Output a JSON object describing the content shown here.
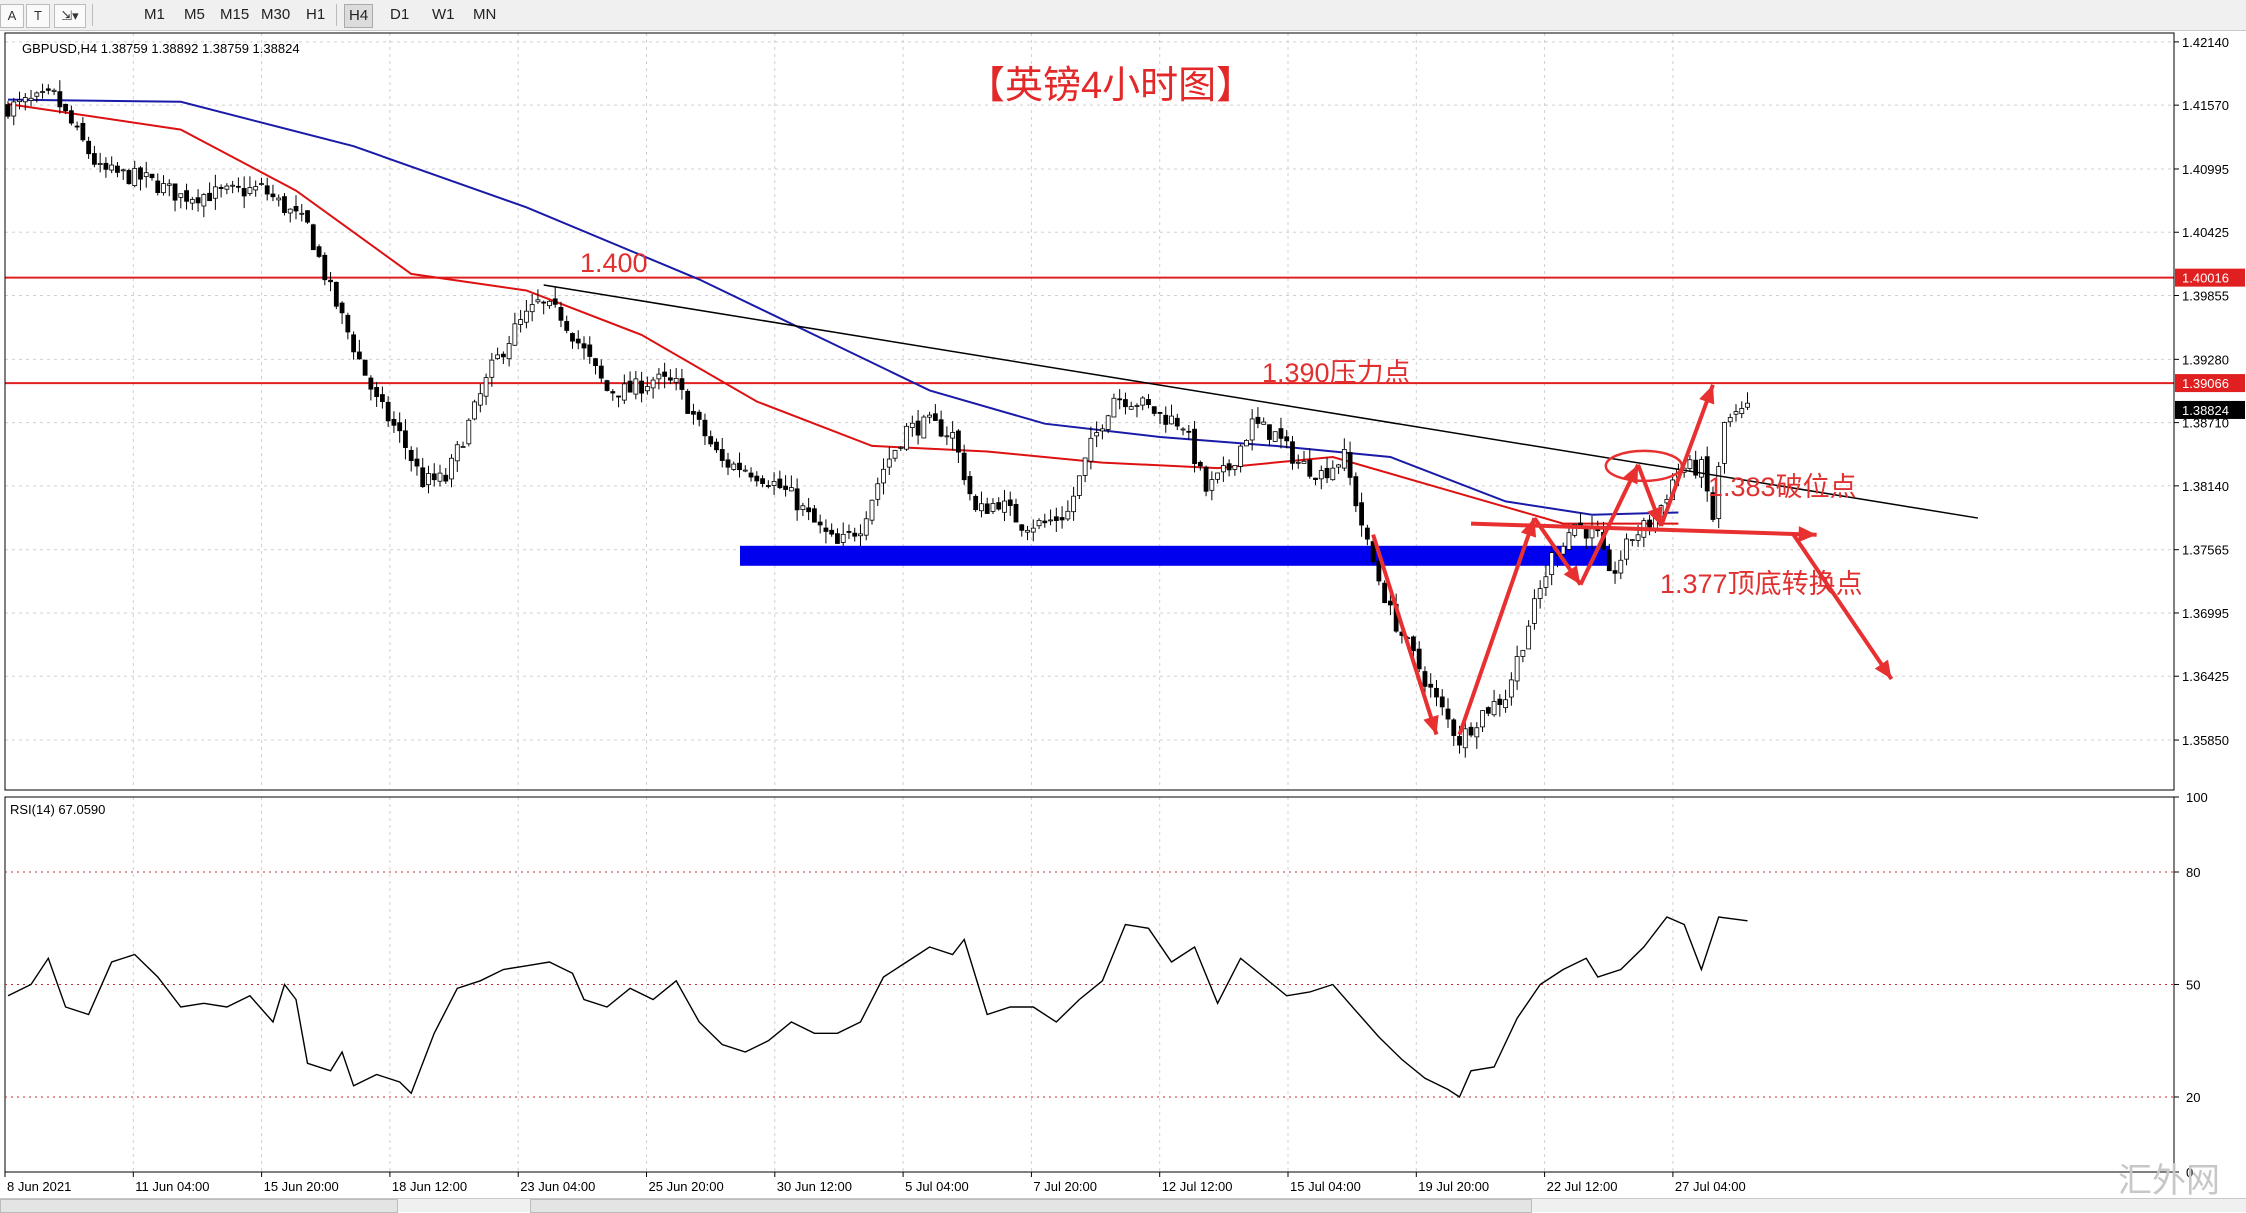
{
  "toolbar": {
    "timeframes": [
      "M1",
      "M5",
      "M15",
      "M30",
      "H1",
      "H4",
      "D1",
      "W1",
      "MN"
    ],
    "active": "H4"
  },
  "header": {
    "symbol_line": "GBPUSD,H4  1.38759 1.38892 1.38759 1.38824",
    "title": "【英镑4小时图】"
  },
  "rsi_header": "RSI(14) 67.0590",
  "watermark": "汇外网",
  "annotations": {
    "level_1400": "1.400",
    "level_1390": "1.390压力点",
    "level_1383": "1.383破位点",
    "level_1377": "1.377顶底转换点"
  },
  "colors": {
    "bull_body": "#ffffff",
    "bear_body": "#000000",
    "ma_fast": "#dd1111",
    "ma_slow": "#1a1aa8",
    "level_line": "#e02020",
    "zone": "#0000ee",
    "arrow": "#e83030",
    "trendline": "#000000"
  },
  "chart_data": [
    {
      "type": "candlestick",
      "symbol": "GBPUSD",
      "timeframe": "H4",
      "ohlc_last": {
        "open": 1.38759,
        "high": 1.38892,
        "low": 1.38759,
        "close": 1.38824
      },
      "y_ticks": [
        "1.42140",
        "1.41570",
        "1.40995",
        "1.40425",
        "1.39855",
        "1.39280",
        "1.38710",
        "1.38140",
        "1.37565",
        "1.36995",
        "1.36425",
        "1.35850"
      ],
      "ylim": [
        1.354,
        1.4222
      ],
      "price_tags": [
        "1.40016",
        "1.39066",
        "1.38824"
      ],
      "x_ticks": [
        "8 Jun 2021",
        "11 Jun 04:00",
        "15 Jun 20:00",
        "18 Jun 12:00",
        "23 Jun 04:00",
        "25 Jun 20:00",
        "30 Jun 12:00",
        "5 Jul 04:00",
        "7 Jul 20:00",
        "12 Jul 12:00",
        "15 Jul 04:00",
        "19 Jul 20:00",
        "22 Jul 12:00",
        "27 Jul 04:00"
      ],
      "keypoints": [
        {
          "b": 0,
          "p": 1.4155
        },
        {
          "b": 8,
          "p": 1.4165
        },
        {
          "b": 16,
          "p": 1.4098
        },
        {
          "b": 24,
          "p": 1.409
        },
        {
          "b": 30,
          "p": 1.4075
        },
        {
          "b": 38,
          "p": 1.4078
        },
        {
          "b": 44,
          "p": 1.4082
        },
        {
          "b": 48,
          "p": 1.4065
        },
        {
          "b": 52,
          "p": 1.4048
        },
        {
          "b": 56,
          "p": 1.399
        },
        {
          "b": 60,
          "p": 1.394
        },
        {
          "b": 64,
          "p": 1.389
        },
        {
          "b": 68,
          "p": 1.386
        },
        {
          "b": 72,
          "p": 1.3818
        },
        {
          "b": 76,
          "p": 1.382
        },
        {
          "b": 80,
          "p": 1.387
        },
        {
          "b": 84,
          "p": 1.392
        },
        {
          "b": 88,
          "p": 1.3955
        },
        {
          "b": 92,
          "p": 1.3978
        },
        {
          "b": 96,
          "p": 1.3968
        },
        {
          "b": 100,
          "p": 1.3935
        },
        {
          "b": 104,
          "p": 1.39
        },
        {
          "b": 108,
          "p": 1.39
        },
        {
          "b": 112,
          "p": 1.391
        },
        {
          "b": 116,
          "p": 1.3905
        },
        {
          "b": 120,
          "p": 1.3868
        },
        {
          "b": 124,
          "p": 1.3835
        },
        {
          "b": 128,
          "p": 1.383
        },
        {
          "b": 132,
          "p": 1.382
        },
        {
          "b": 136,
          "p": 1.3805
        },
        {
          "b": 140,
          "p": 1.378
        },
        {
          "b": 144,
          "p": 1.376
        },
        {
          "b": 148,
          "p": 1.3778
        },
        {
          "b": 152,
          "p": 1.383
        },
        {
          "b": 156,
          "p": 1.3865
        },
        {
          "b": 160,
          "p": 1.387
        },
        {
          "b": 164,
          "p": 1.386
        },
        {
          "b": 168,
          "p": 1.379
        },
        {
          "b": 172,
          "p": 1.38
        },
        {
          "b": 176,
          "p": 1.378
        },
        {
          "b": 180,
          "p": 1.378
        },
        {
          "b": 184,
          "p": 1.379
        },
        {
          "b": 188,
          "p": 1.385
        },
        {
          "b": 192,
          "p": 1.3895
        },
        {
          "b": 196,
          "p": 1.389
        },
        {
          "b": 200,
          "p": 1.3878
        },
        {
          "b": 204,
          "p": 1.387
        },
        {
          "b": 208,
          "p": 1.381
        },
        {
          "b": 212,
          "p": 1.383
        },
        {
          "b": 216,
          "p": 1.387
        },
        {
          "b": 220,
          "p": 1.386
        },
        {
          "b": 224,
          "p": 1.3835
        },
        {
          "b": 228,
          "p": 1.3825
        },
        {
          "b": 232,
          "p": 1.384
        },
        {
          "b": 236,
          "p": 1.376
        },
        {
          "b": 240,
          "p": 1.37
        },
        {
          "b": 244,
          "p": 1.366
        },
        {
          "b": 248,
          "p": 1.362
        },
        {
          "b": 252,
          "p": 1.3585
        },
        {
          "b": 256,
          "p": 1.361
        },
        {
          "b": 260,
          "p": 1.3625
        },
        {
          "b": 264,
          "p": 1.369
        },
        {
          "b": 268,
          "p": 1.375
        },
        {
          "b": 272,
          "p": 1.378
        },
        {
          "b": 276,
          "p": 1.3768
        },
        {
          "b": 278,
          "p": 1.373
        },
        {
          "b": 282,
          "p": 1.3768
        },
        {
          "b": 286,
          "p": 1.3785
        },
        {
          "b": 290,
          "p": 1.383
        },
        {
          "b": 294,
          "p": 1.383
        },
        {
          "b": 296,
          "p": 1.3785
        },
        {
          "b": 298,
          "p": 1.387
        },
        {
          "b": 302,
          "p": 1.3882
        }
      ],
      "overlays": {
        "levels": [
          1.40016,
          1.39066
        ],
        "zone": [
          1.3742,
          1.376
        ],
        "trendline": [
          {
            "b": 93,
            "p": 1.3995
          },
          {
            "b": 342,
            "p": 1.3785
          }
        ],
        "ma_fast_points": [
          {
            "b": 0,
            "p": 1.4158
          },
          {
            "b": 30,
            "p": 1.4135
          },
          {
            "b": 50,
            "p": 1.408
          },
          {
            "b": 70,
            "p": 1.4005
          },
          {
            "b": 90,
            "p": 1.399
          },
          {
            "b": 110,
            "p": 1.395
          },
          {
            "b": 130,
            "p": 1.389
          },
          {
            "b": 150,
            "p": 1.385
          },
          {
            "b": 170,
            "p": 1.3845
          },
          {
            "b": 190,
            "p": 1.3835
          },
          {
            "b": 210,
            "p": 1.383
          },
          {
            "b": 230,
            "p": 1.384
          },
          {
            "b": 250,
            "p": 1.381
          },
          {
            "b": 270,
            "p": 1.378
          },
          {
            "b": 290,
            "p": 1.378
          }
        ],
        "ma_slow_points": [
          {
            "b": 0,
            "p": 1.4162
          },
          {
            "b": 30,
            "p": 1.416
          },
          {
            "b": 60,
            "p": 1.412
          },
          {
            "b": 90,
            "p": 1.4065
          },
          {
            "b": 120,
            "p": 1.4
          },
          {
            "b": 140,
            "p": 1.395
          },
          {
            "b": 160,
            "p": 1.39
          },
          {
            "b": 180,
            "p": 1.387
          },
          {
            "b": 200,
            "p": 1.3858
          },
          {
            "b": 220,
            "p": 1.385
          },
          {
            "b": 240,
            "p": 1.384
          },
          {
            "b": 260,
            "p": 1.38
          },
          {
            "b": 275,
            "p": 1.3788
          },
          {
            "b": 290,
            "p": 1.379
          }
        ],
        "arrows": [
          {
            "from": {
              "b": 237,
              "p": 1.377
            },
            "to": {
              "b": 248,
              "p": 1.359
            }
          },
          {
            "from": {
              "b": 252,
              "p": 1.359
            },
            "to": {
              "b": 265,
              "p": 1.3785
            }
          },
          {
            "from": {
              "b": 265,
              "p": 1.3785
            },
            "to": {
              "b": 273,
              "p": 1.3725
            }
          },
          {
            "from": {
              "b": 273,
              "p": 1.3725
            },
            "to": {
              "b": 283,
              "p": 1.3833
            }
          },
          {
            "from": {
              "b": 283,
              "p": 1.3833
            },
            "to": {
              "b": 287,
              "p": 1.3778
            }
          },
          {
            "from": {
              "b": 287,
              "p": 1.3778
            },
            "to": {
              "b": 296,
              "p": 1.3905
            }
          },
          {
            "from": {
              "b": 254,
              "p": 1.378
            },
            "to": {
              "b": 314,
              "p": 1.377
            }
          },
          {
            "from": {
              "b": 310,
              "p": 1.377
            },
            "to": {
              "b": 327,
              "p": 1.364
            }
          }
        ],
        "ellipse_center": {
          "b": 284,
          "p": 1.3832
        }
      }
    },
    {
      "type": "line",
      "name": "RSI(14)",
      "value_last": 67.059,
      "y_ticks": [
        "100",
        "80",
        "50",
        "20",
        "0"
      ],
      "levels": [
        80,
        50,
        20
      ],
      "ylim": [
        0,
        100
      ],
      "points": [
        {
          "b": 0,
          "v": 47
        },
        {
          "b": 4,
          "v": 50
        },
        {
          "b": 7,
          "v": 57
        },
        {
          "b": 10,
          "v": 44
        },
        {
          "b": 14,
          "v": 42
        },
        {
          "b": 18,
          "v": 56
        },
        {
          "b": 22,
          "v": 58
        },
        {
          "b": 26,
          "v": 52
        },
        {
          "b": 30,
          "v": 44
        },
        {
          "b": 34,
          "v": 45
        },
        {
          "b": 38,
          "v": 44
        },
        {
          "b": 42,
          "v": 47
        },
        {
          "b": 46,
          "v": 40
        },
        {
          "b": 48,
          "v": 50
        },
        {
          "b": 50,
          "v": 46
        },
        {
          "b": 52,
          "v": 29
        },
        {
          "b": 56,
          "v": 27
        },
        {
          "b": 58,
          "v": 32
        },
        {
          "b": 60,
          "v": 23
        },
        {
          "b": 64,
          "v": 26
        },
        {
          "b": 68,
          "v": 24
        },
        {
          "b": 70,
          "v": 21
        },
        {
          "b": 74,
          "v": 37
        },
        {
          "b": 78,
          "v": 49
        },
        {
          "b": 82,
          "v": 51
        },
        {
          "b": 86,
          "v": 54
        },
        {
          "b": 90,
          "v": 55
        },
        {
          "b": 94,
          "v": 56
        },
        {
          "b": 98,
          "v": 53
        },
        {
          "b": 100,
          "v": 46
        },
        {
          "b": 104,
          "v": 44
        },
        {
          "b": 108,
          "v": 49
        },
        {
          "b": 112,
          "v": 46
        },
        {
          "b": 116,
          "v": 51
        },
        {
          "b": 120,
          "v": 40
        },
        {
          "b": 124,
          "v": 34
        },
        {
          "b": 128,
          "v": 32
        },
        {
          "b": 132,
          "v": 35
        },
        {
          "b": 136,
          "v": 40
        },
        {
          "b": 140,
          "v": 37
        },
        {
          "b": 144,
          "v": 37
        },
        {
          "b": 148,
          "v": 40
        },
        {
          "b": 152,
          "v": 52
        },
        {
          "b": 156,
          "v": 56
        },
        {
          "b": 160,
          "v": 60
        },
        {
          "b": 164,
          "v": 58
        },
        {
          "b": 166,
          "v": 62
        },
        {
          "b": 170,
          "v": 42
        },
        {
          "b": 174,
          "v": 44
        },
        {
          "b": 178,
          "v": 44
        },
        {
          "b": 182,
          "v": 40
        },
        {
          "b": 186,
          "v": 46
        },
        {
          "b": 190,
          "v": 51
        },
        {
          "b": 194,
          "v": 66
        },
        {
          "b": 198,
          "v": 65
        },
        {
          "b": 202,
          "v": 56
        },
        {
          "b": 206,
          "v": 60
        },
        {
          "b": 210,
          "v": 45
        },
        {
          "b": 214,
          "v": 57
        },
        {
          "b": 218,
          "v": 52
        },
        {
          "b": 222,
          "v": 47
        },
        {
          "b": 226,
          "v": 48
        },
        {
          "b": 230,
          "v": 50
        },
        {
          "b": 234,
          "v": 43
        },
        {
          "b": 238,
          "v": 36
        },
        {
          "b": 242,
          "v": 30
        },
        {
          "b": 246,
          "v": 25
        },
        {
          "b": 250,
          "v": 22
        },
        {
          "b": 252,
          "v": 20
        },
        {
          "b": 254,
          "v": 27
        },
        {
          "b": 258,
          "v": 28
        },
        {
          "b": 262,
          "v": 41
        },
        {
          "b": 266,
          "v": 50
        },
        {
          "b": 270,
          "v": 54
        },
        {
          "b": 274,
          "v": 57
        },
        {
          "b": 276,
          "v": 52
        },
        {
          "b": 280,
          "v": 54
        },
        {
          "b": 284,
          "v": 60
        },
        {
          "b": 288,
          "v": 68
        },
        {
          "b": 291,
          "v": 66
        },
        {
          "b": 294,
          "v": 54
        },
        {
          "b": 297,
          "v": 68
        },
        {
          "b": 302,
          "v": 67
        }
      ]
    }
  ]
}
